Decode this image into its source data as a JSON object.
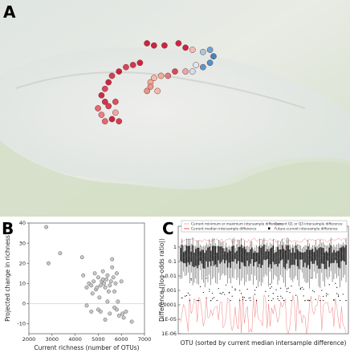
{
  "panels": {
    "a": {
      "letter": "A"
    },
    "b": {
      "letter": "B"
    },
    "c": {
      "letter": "C"
    }
  },
  "map": {
    "type": "map",
    "sites": [
      {
        "lon": 0.42,
        "lat": 0.2,
        "color": "#c8102e"
      },
      {
        "lon": 0.44,
        "lat": 0.21,
        "color": "#c8102e"
      },
      {
        "lon": 0.47,
        "lat": 0.21,
        "color": "#c8102e"
      },
      {
        "lon": 0.51,
        "lat": 0.2,
        "color": "#c8102e"
      },
      {
        "lon": 0.53,
        "lat": 0.22,
        "color": "#c8102e"
      },
      {
        "lon": 0.55,
        "lat": 0.23,
        "color": "#f2b8b8"
      },
      {
        "lon": 0.58,
        "lat": 0.24,
        "color": "#9ec4e0"
      },
      {
        "lon": 0.6,
        "lat": 0.23,
        "color": "#5b9fd0"
      },
      {
        "lon": 0.61,
        "lat": 0.26,
        "color": "#2b7bbd"
      },
      {
        "lon": 0.6,
        "lat": 0.29,
        "color": "#3d8bc4"
      },
      {
        "lon": 0.58,
        "lat": 0.31,
        "color": "#4a90c8"
      },
      {
        "lon": 0.56,
        "lat": 0.3,
        "color": "#dbe7f0"
      },
      {
        "lon": 0.55,
        "lat": 0.33,
        "color": "#cfe0ec"
      },
      {
        "lon": 0.53,
        "lat": 0.33,
        "color": "#e5a0a0"
      },
      {
        "lon": 0.5,
        "lat": 0.33,
        "color": "#d23a4a"
      },
      {
        "lon": 0.48,
        "lat": 0.35,
        "color": "#e07070"
      },
      {
        "lon": 0.46,
        "lat": 0.35,
        "color": "#f2a890"
      },
      {
        "lon": 0.44,
        "lat": 0.36,
        "color": "#f5b99e"
      },
      {
        "lon": 0.43,
        "lat": 0.38,
        "color": "#f0a98e"
      },
      {
        "lon": 0.43,
        "lat": 0.4,
        "color": "#e89480"
      },
      {
        "lon": 0.42,
        "lat": 0.42,
        "color": "#e58a7a"
      },
      {
        "lon": 0.45,
        "lat": 0.42,
        "color": "#f3b6a0"
      },
      {
        "lon": 0.4,
        "lat": 0.29,
        "color": "#c8102e"
      },
      {
        "lon": 0.38,
        "lat": 0.3,
        "color": "#d0243c"
      },
      {
        "lon": 0.36,
        "lat": 0.31,
        "color": "#d8324a"
      },
      {
        "lon": 0.34,
        "lat": 0.33,
        "color": "#c8102e"
      },
      {
        "lon": 0.32,
        "lat": 0.35,
        "color": "#d42a44"
      },
      {
        "lon": 0.31,
        "lat": 0.38,
        "color": "#c8102e"
      },
      {
        "lon": 0.3,
        "lat": 0.41,
        "color": "#d8344c"
      },
      {
        "lon": 0.29,
        "lat": 0.44,
        "color": "#c41a32"
      },
      {
        "lon": 0.3,
        "lat": 0.47,
        "color": "#cc2038"
      },
      {
        "lon": 0.28,
        "lat": 0.5,
        "color": "#e25a64"
      },
      {
        "lon": 0.31,
        "lat": 0.49,
        "color": "#d03040"
      },
      {
        "lon": 0.33,
        "lat": 0.47,
        "color": "#d84050"
      },
      {
        "lon": 0.29,
        "lat": 0.53,
        "color": "#e77878"
      },
      {
        "lon": 0.33,
        "lat": 0.52,
        "color": "#f0a0a0"
      },
      {
        "lon": 0.32,
        "lat": 0.55,
        "color": "#c8102e"
      },
      {
        "lon": 0.3,
        "lat": 0.56,
        "color": "#e25a64"
      },
      {
        "lon": 0.34,
        "lat": 0.56,
        "color": "#d02a40"
      }
    ]
  },
  "chart_data": [
    {
      "type": "scatter",
      "xlabel": "Current richness (number of OTUs)",
      "ylabel": "Projected change in richness",
      "xlim": [
        2000,
        7000
      ],
      "ylim": [
        -15,
        40
      ],
      "xticks": [
        2000,
        3000,
        4000,
        5000,
        6000,
        7000
      ],
      "yticks": [
        -10,
        0,
        10,
        20,
        30,
        40
      ],
      "zero_line": true,
      "points": [
        [
          2750,
          38
        ],
        [
          2850,
          20
        ],
        [
          3350,
          25
        ],
        [
          4300,
          23
        ],
        [
          4350,
          14
        ],
        [
          4500,
          8
        ],
        [
          4600,
          10
        ],
        [
          4700,
          9
        ],
        [
          4750,
          5
        ],
        [
          4800,
          11
        ],
        [
          4850,
          15
        ],
        [
          4900,
          7
        ],
        [
          4950,
          8
        ],
        [
          5000,
          13
        ],
        [
          5000,
          -3
        ],
        [
          5050,
          3
        ],
        [
          5100,
          9
        ],
        [
          5150,
          11
        ],
        [
          5200,
          12
        ],
        [
          5200,
          16
        ],
        [
          5250,
          10
        ],
        [
          5300,
          8
        ],
        [
          5350,
          12
        ],
        [
          5400,
          14
        ],
        [
          5400,
          1
        ],
        [
          5450,
          6
        ],
        [
          5500,
          9
        ],
        [
          5500,
          -5
        ],
        [
          5550,
          11
        ],
        [
          5600,
          22
        ],
        [
          5600,
          18
        ],
        [
          5650,
          13
        ],
        [
          5700,
          6
        ],
        [
          5750,
          10
        ],
        [
          5800,
          15
        ],
        [
          5800,
          -3
        ],
        [
          5850,
          1
        ],
        [
          5900,
          -6
        ],
        [
          6000,
          11
        ],
        [
          6050,
          -5
        ],
        [
          6100,
          -7
        ],
        [
          6200,
          -4
        ],
        [
          6450,
          -9
        ],
        [
          4500,
          -1
        ],
        [
          4700,
          -4
        ],
        [
          5100,
          -4
        ],
        [
          5300,
          -8
        ],
        [
          5700,
          -2
        ]
      ]
    },
    {
      "type": "boxplot",
      "xlabel": "OTU (sorted by current median intersample difference)",
      "ylabel": "Difference (|log-odds ratio|)",
      "yscale": "log",
      "ylim": [
        1e-06,
        10
      ],
      "yticks": [
        1e-06,
        1e-05,
        0.0001,
        0.001,
        0.01,
        0.1,
        1
      ],
      "ytick_labels": [
        "1E-06",
        "1E-05",
        "0.0001",
        "0.001",
        "0.01",
        "0.1",
        "1"
      ],
      "n_otus": 110,
      "legend": [
        {
          "label": "Current minimum or maximum intersample difference",
          "color": "#f08080",
          "style": "line"
        },
        {
          "label": "Current Q1 or Q3 intersample difference",
          "color": "#f08080",
          "style": "line"
        },
        {
          "label": "Current median intersample difference",
          "color": "#e03030",
          "style": "line"
        },
        {
          "label": "Future-current intersample difference",
          "color": "#000000",
          "style": "box"
        }
      ],
      "series_summary": {
        "future_median_range": [
          0.1,
          0.6
        ],
        "future_box_q1_range": [
          0.03,
          0.15
        ],
        "future_box_q3_range": [
          0.4,
          1.5
        ],
        "current_max_level": 3,
        "current_q3_level": 1,
        "current_min_range": [
          1e-06,
          0.0005
        ]
      }
    }
  ]
}
